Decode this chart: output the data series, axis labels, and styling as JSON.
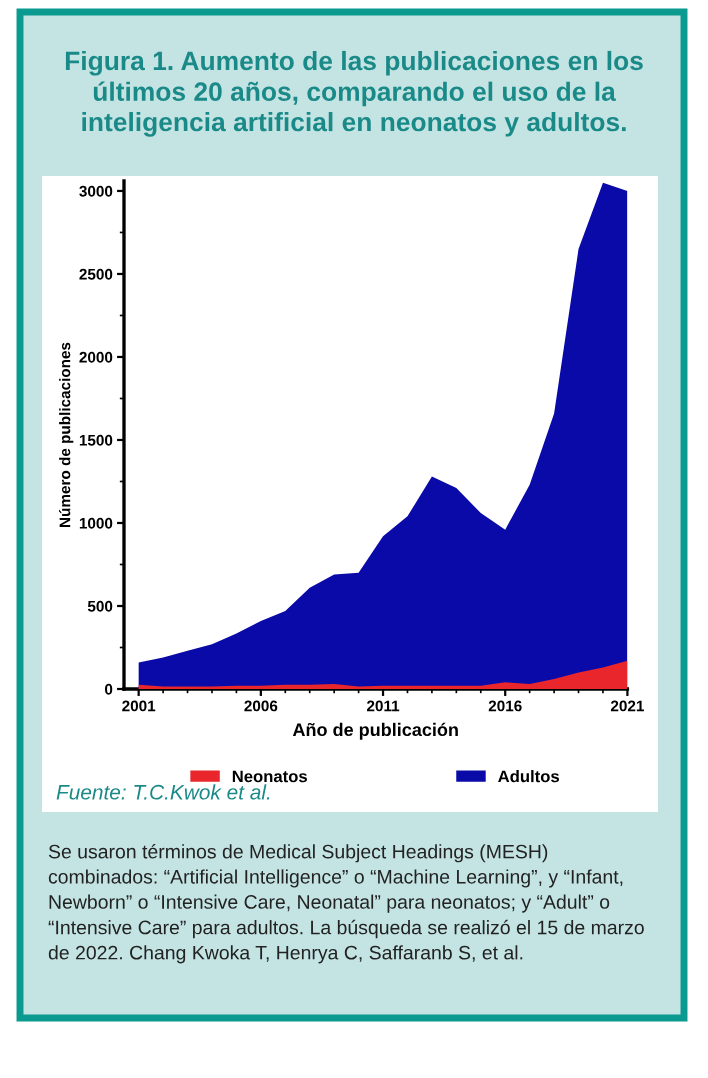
{
  "chart_data": {
    "type": "area",
    "title": "Figura 1. Aumento de las publicaciones en los últimos 20 años, comparando el uso de la inteligencia artificial en neonatos y adultos.",
    "xlabel": "Año de publicación",
    "ylabel": "Número de publicaciones",
    "x": [
      2001,
      2002,
      2003,
      2004,
      2005,
      2006,
      2007,
      2008,
      2009,
      2010,
      2011,
      2012,
      2013,
      2014,
      2015,
      2016,
      2017,
      2018,
      2019,
      2020,
      2021
    ],
    "series": [
      {
        "name": "Neonatos",
        "color": "#e8262b",
        "values": [
          25,
          15,
          15,
          15,
          20,
          20,
          25,
          25,
          30,
          15,
          20,
          20,
          20,
          20,
          20,
          40,
          30,
          60,
          100,
          130,
          170
        ]
      },
      {
        "name": "Adultos",
        "color": "#0a0aa8",
        "values": [
          160,
          190,
          230,
          270,
          335,
          410,
          470,
          610,
          690,
          700,
          920,
          1040,
          1280,
          1210,
          1060,
          960,
          1230,
          1660,
          2650,
          3050,
          3000
        ]
      }
    ],
    "xlim": [
      2000.4,
      2021
    ],
    "ylim": [
      0,
      3060
    ],
    "xticks": [
      2001,
      2006,
      2011,
      2016,
      2021
    ],
    "yticks": [
      0,
      500,
      1000,
      1500,
      2000,
      2500,
      3000
    ],
    "grid": false,
    "legend": "bottom",
    "annotations": [
      "Fuente: T.C.Kwok et al.",
      "Se usaron términos de Medical Subject Headings (MESH) combinados: “Artificial Intelligence” o “Machine Learning”, y “Infant, Newborn” o “Intensive Care, Neonatal” para neonatos; y “Adult” o “Intensive Care” para adultos. La búsqueda se realizó el 15 de marzo de 2022. Chang Kwoka T, Henrya C, Saffaranb S, et al."
    ]
  }
}
